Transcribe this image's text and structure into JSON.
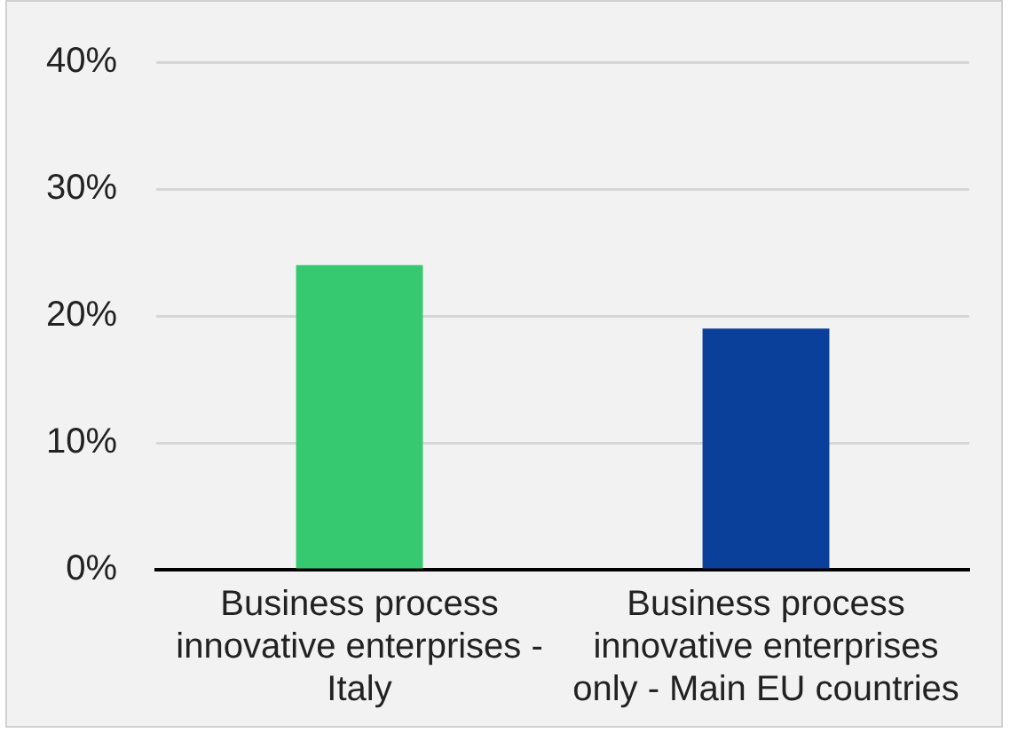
{
  "chart_data": {
    "type": "bar",
    "categories": [
      "Business process innovative enterprises - Italy",
      "Business process innovative enterprises only - Main EU countries"
    ],
    "values": [
      24,
      19
    ],
    "colors": [
      "#36c96f",
      "#0a3f9a"
    ],
    "ylim": [
      0,
      40
    ],
    "yticks": [
      {
        "value": 0,
        "label": "0%"
      },
      {
        "value": 10,
        "label": "10%"
      },
      {
        "value": 20,
        "label": "20%"
      },
      {
        "value": 30,
        "label": "30%"
      },
      {
        "value": 40,
        "label": "40%"
      }
    ],
    "grid": "y",
    "legend": false
  }
}
